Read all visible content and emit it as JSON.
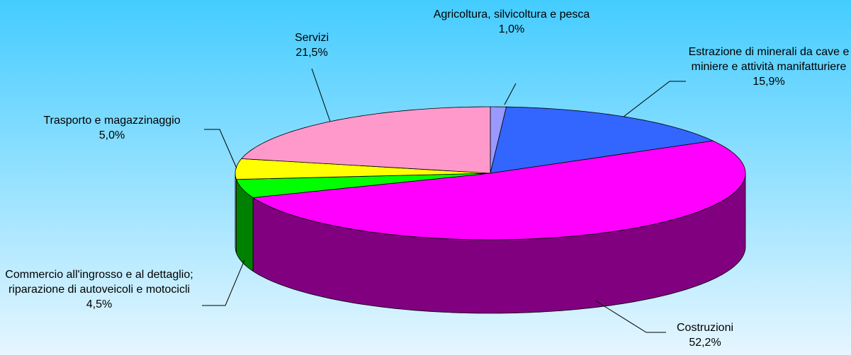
{
  "chart_data": {
    "type": "pie3d",
    "categories": [
      "Agricoltura, silvicoltura e pesca",
      "Estrazione di minerali da cave e miniere e attività manifatturiere",
      "Costruzioni",
      "Commercio all'ingrosso e al dettaglio; riparazione di autoveicoli e motocicli",
      "Trasporto e magazzinaggio",
      "Servizi"
    ],
    "values": [
      1.0,
      15.9,
      52.2,
      4.5,
      5.0,
      21.5
    ],
    "value_labels": [
      "1,0%",
      "15,9%",
      "52,2%",
      "4,5%",
      "5,0%",
      "21,5%"
    ],
    "colors": [
      "#9999ff",
      "#3366ff",
      "#ff00ff",
      "#00ff00",
      "#ffff00",
      "#ff99cc"
    ],
    "side_colors": [
      "#5050a0",
      "#1a3399",
      "#800080",
      "#008000",
      "#999900",
      "#996070"
    ]
  }
}
